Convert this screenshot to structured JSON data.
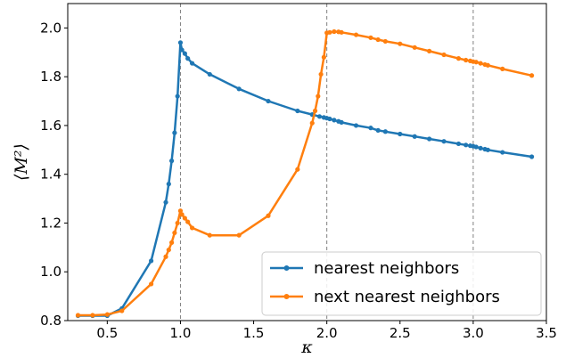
{
  "chart_data": {
    "type": "line",
    "xlabel": "κ",
    "ylabel": "⟨M²⟩",
    "xlim": [
      0.23,
      3.5
    ],
    "ylim": [
      0.8,
      2.1
    ],
    "xticks": [
      "0.5",
      "1.0",
      "1.5",
      "2.0",
      "2.5",
      "3.0",
      "3.5"
    ],
    "yticks": [
      "0.8",
      "1.0",
      "1.2",
      "1.4",
      "1.6",
      "1.8",
      "2.0"
    ],
    "vlines": [
      1.0,
      2.0,
      3.0
    ],
    "legend_position": "lower-right",
    "grid": false,
    "series": [
      {
        "name": "nearest neighbors",
        "color": "#1f77b4",
        "points": [
          [
            0.3,
            0.82
          ],
          [
            0.4,
            0.82
          ],
          [
            0.5,
            0.82
          ],
          [
            0.6,
            0.85
          ],
          [
            0.8,
            1.045
          ],
          [
            0.9,
            1.285
          ],
          [
            0.92,
            1.36
          ],
          [
            0.94,
            1.455
          ],
          [
            0.96,
            1.57
          ],
          [
            0.98,
            1.72
          ],
          [
            1.0,
            1.94
          ],
          [
            1.01,
            1.91
          ],
          [
            1.03,
            1.895
          ],
          [
            1.05,
            1.875
          ],
          [
            1.08,
            1.855
          ],
          [
            1.2,
            1.81
          ],
          [
            1.4,
            1.75
          ],
          [
            1.6,
            1.7
          ],
          [
            1.8,
            1.66
          ],
          [
            1.9,
            1.645
          ],
          [
            1.95,
            1.637
          ],
          [
            1.98,
            1.633
          ],
          [
            2.0,
            1.63
          ],
          [
            2.02,
            1.627
          ],
          [
            2.05,
            1.622
          ],
          [
            2.08,
            1.617
          ],
          [
            2.1,
            1.613
          ],
          [
            2.2,
            1.6
          ],
          [
            2.3,
            1.59
          ],
          [
            2.35,
            1.58
          ],
          [
            2.4,
            1.575
          ],
          [
            2.5,
            1.565
          ],
          [
            2.6,
            1.555
          ],
          [
            2.7,
            1.545
          ],
          [
            2.8,
            1.535
          ],
          [
            2.9,
            1.525
          ],
          [
            2.95,
            1.52
          ],
          [
            2.98,
            1.517
          ],
          [
            3.0,
            1.515
          ],
          [
            3.02,
            1.512
          ],
          [
            3.05,
            1.507
          ],
          [
            3.08,
            1.503
          ],
          [
            3.1,
            1.5
          ],
          [
            3.2,
            1.49
          ],
          [
            3.4,
            1.472
          ]
        ]
      },
      {
        "name": "next nearest neighbors",
        "color": "#ff7f0e",
        "points": [
          [
            0.3,
            0.822
          ],
          [
            0.4,
            0.822
          ],
          [
            0.5,
            0.825
          ],
          [
            0.6,
            0.84
          ],
          [
            0.8,
            0.95
          ],
          [
            0.9,
            1.062
          ],
          [
            0.92,
            1.09
          ],
          [
            0.94,
            1.12
          ],
          [
            0.96,
            1.16
          ],
          [
            0.98,
            1.2
          ],
          [
            1.0,
            1.25
          ],
          [
            1.01,
            1.235
          ],
          [
            1.03,
            1.22
          ],
          [
            1.05,
            1.205
          ],
          [
            1.08,
            1.18
          ],
          [
            1.2,
            1.15
          ],
          [
            1.4,
            1.15
          ],
          [
            1.6,
            1.23
          ],
          [
            1.8,
            1.42
          ],
          [
            1.9,
            1.61
          ],
          [
            1.92,
            1.66
          ],
          [
            1.94,
            1.72
          ],
          [
            1.96,
            1.81
          ],
          [
            1.98,
            1.88
          ],
          [
            2.0,
            1.98
          ],
          [
            2.02,
            1.982
          ],
          [
            2.05,
            1.985
          ],
          [
            2.08,
            1.984
          ],
          [
            2.1,
            1.982
          ],
          [
            2.2,
            1.972
          ],
          [
            2.3,
            1.96
          ],
          [
            2.35,
            1.952
          ],
          [
            2.4,
            1.945
          ],
          [
            2.5,
            1.935
          ],
          [
            2.6,
            1.92
          ],
          [
            2.7,
            1.905
          ],
          [
            2.8,
            1.89
          ],
          [
            2.9,
            1.875
          ],
          [
            2.95,
            1.868
          ],
          [
            2.98,
            1.865
          ],
          [
            3.0,
            1.862
          ],
          [
            3.02,
            1.86
          ],
          [
            3.05,
            1.855
          ],
          [
            3.08,
            1.85
          ],
          [
            3.1,
            1.847
          ],
          [
            3.2,
            1.832
          ],
          [
            3.4,
            1.805
          ]
        ]
      }
    ]
  }
}
